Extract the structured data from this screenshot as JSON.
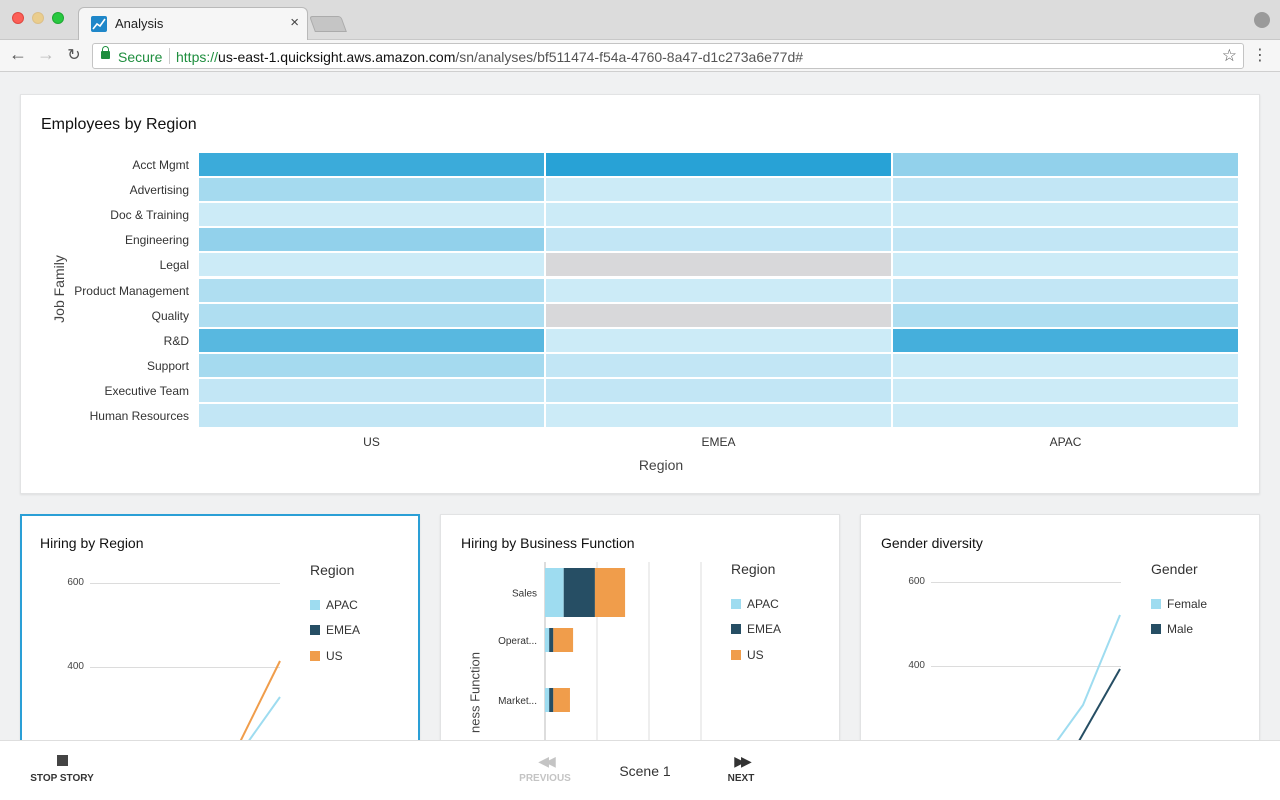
{
  "browser": {
    "tab_title": "Analysis",
    "tab_close": "×",
    "secure_label": "Secure",
    "url_scheme": "https://",
    "url_host": "us-east-1.quicksight.aws.amazon.com",
    "url_path": "/sn/analyses/bf511474-f54a-4760-8a47-d1c273a6e77d#",
    "star": "☆",
    "menu": "⋮"
  },
  "heatmap": {
    "title": "Employees by Region",
    "y_axis_title": "Job Family",
    "x_axis_title": "Region",
    "columns": [
      "US",
      "EMEA",
      "APAC"
    ],
    "rows": [
      "Acct Mgmt",
      "Advertising",
      "Doc & Training",
      "Engineering",
      "Legal",
      "Product Management",
      "Quality",
      "R&D",
      "Support",
      "Executive Team",
      "Human Resources"
    ],
    "levels": [
      [
        0.85,
        0.95,
        0.4
      ],
      [
        0.3,
        0.1,
        0.15
      ],
      [
        0.1,
        0.1,
        0.1
      ],
      [
        0.4,
        0.15,
        0.15
      ],
      [
        0.1,
        null,
        0.1
      ],
      [
        0.25,
        0.1,
        0.15
      ],
      [
        0.25,
        null,
        0.25
      ],
      [
        0.7,
        0.1,
        0.8
      ],
      [
        0.3,
        0.15,
        0.1
      ],
      [
        0.15,
        0.15,
        0.1
      ],
      [
        0.15,
        0.1,
        0.1
      ]
    ],
    "colors": {
      "low": "#dff3fb",
      "high": "#1e9ed4",
      "missing": "#d8d8da"
    }
  },
  "hiring_by_region": {
    "title": "Hiring by Region",
    "legend_title": "Region",
    "legend": [
      {
        "label": "APAC",
        "color": "#9edcf0"
      },
      {
        "label": "EMEA",
        "color": "#264e64"
      },
      {
        "label": "US",
        "color": "#f09d4b"
      }
    ],
    "y_ticks": [
      "600",
      "400"
    ]
  },
  "hiring_by_function": {
    "title": "Hiring by Business Function",
    "legend_title": "Region",
    "y_axis_title": "Business Function",
    "y_axis_visible_text": "ness Function",
    "categories": [
      "Sales",
      "Operat...",
      "Market..."
    ],
    "legend": [
      {
        "label": "APAC",
        "color": "#9edcf0"
      },
      {
        "label": "EMEA",
        "color": "#264e64"
      },
      {
        "label": "US",
        "color": "#f09d4b"
      }
    ],
    "series": [
      {
        "name": "APAC",
        "values": [
          18,
          4,
          4
        ]
      },
      {
        "name": "EMEA",
        "values": [
          30,
          4,
          4
        ]
      },
      {
        "name": "US",
        "values": [
          29,
          19,
          16
        ]
      }
    ],
    "x_max": 150
  },
  "gender_diversity": {
    "title": "Gender diversity",
    "legend_title": "Gender",
    "legend": [
      {
        "label": "Female",
        "color": "#9edcf0"
      },
      {
        "label": "Male",
        "color": "#264e64"
      }
    ],
    "y_ticks": [
      "600",
      "400"
    ]
  },
  "footer": {
    "stop_story": "STOP STORY",
    "previous": "PREVIOUS",
    "scene": "Scene 1",
    "next": "NEXT"
  }
}
